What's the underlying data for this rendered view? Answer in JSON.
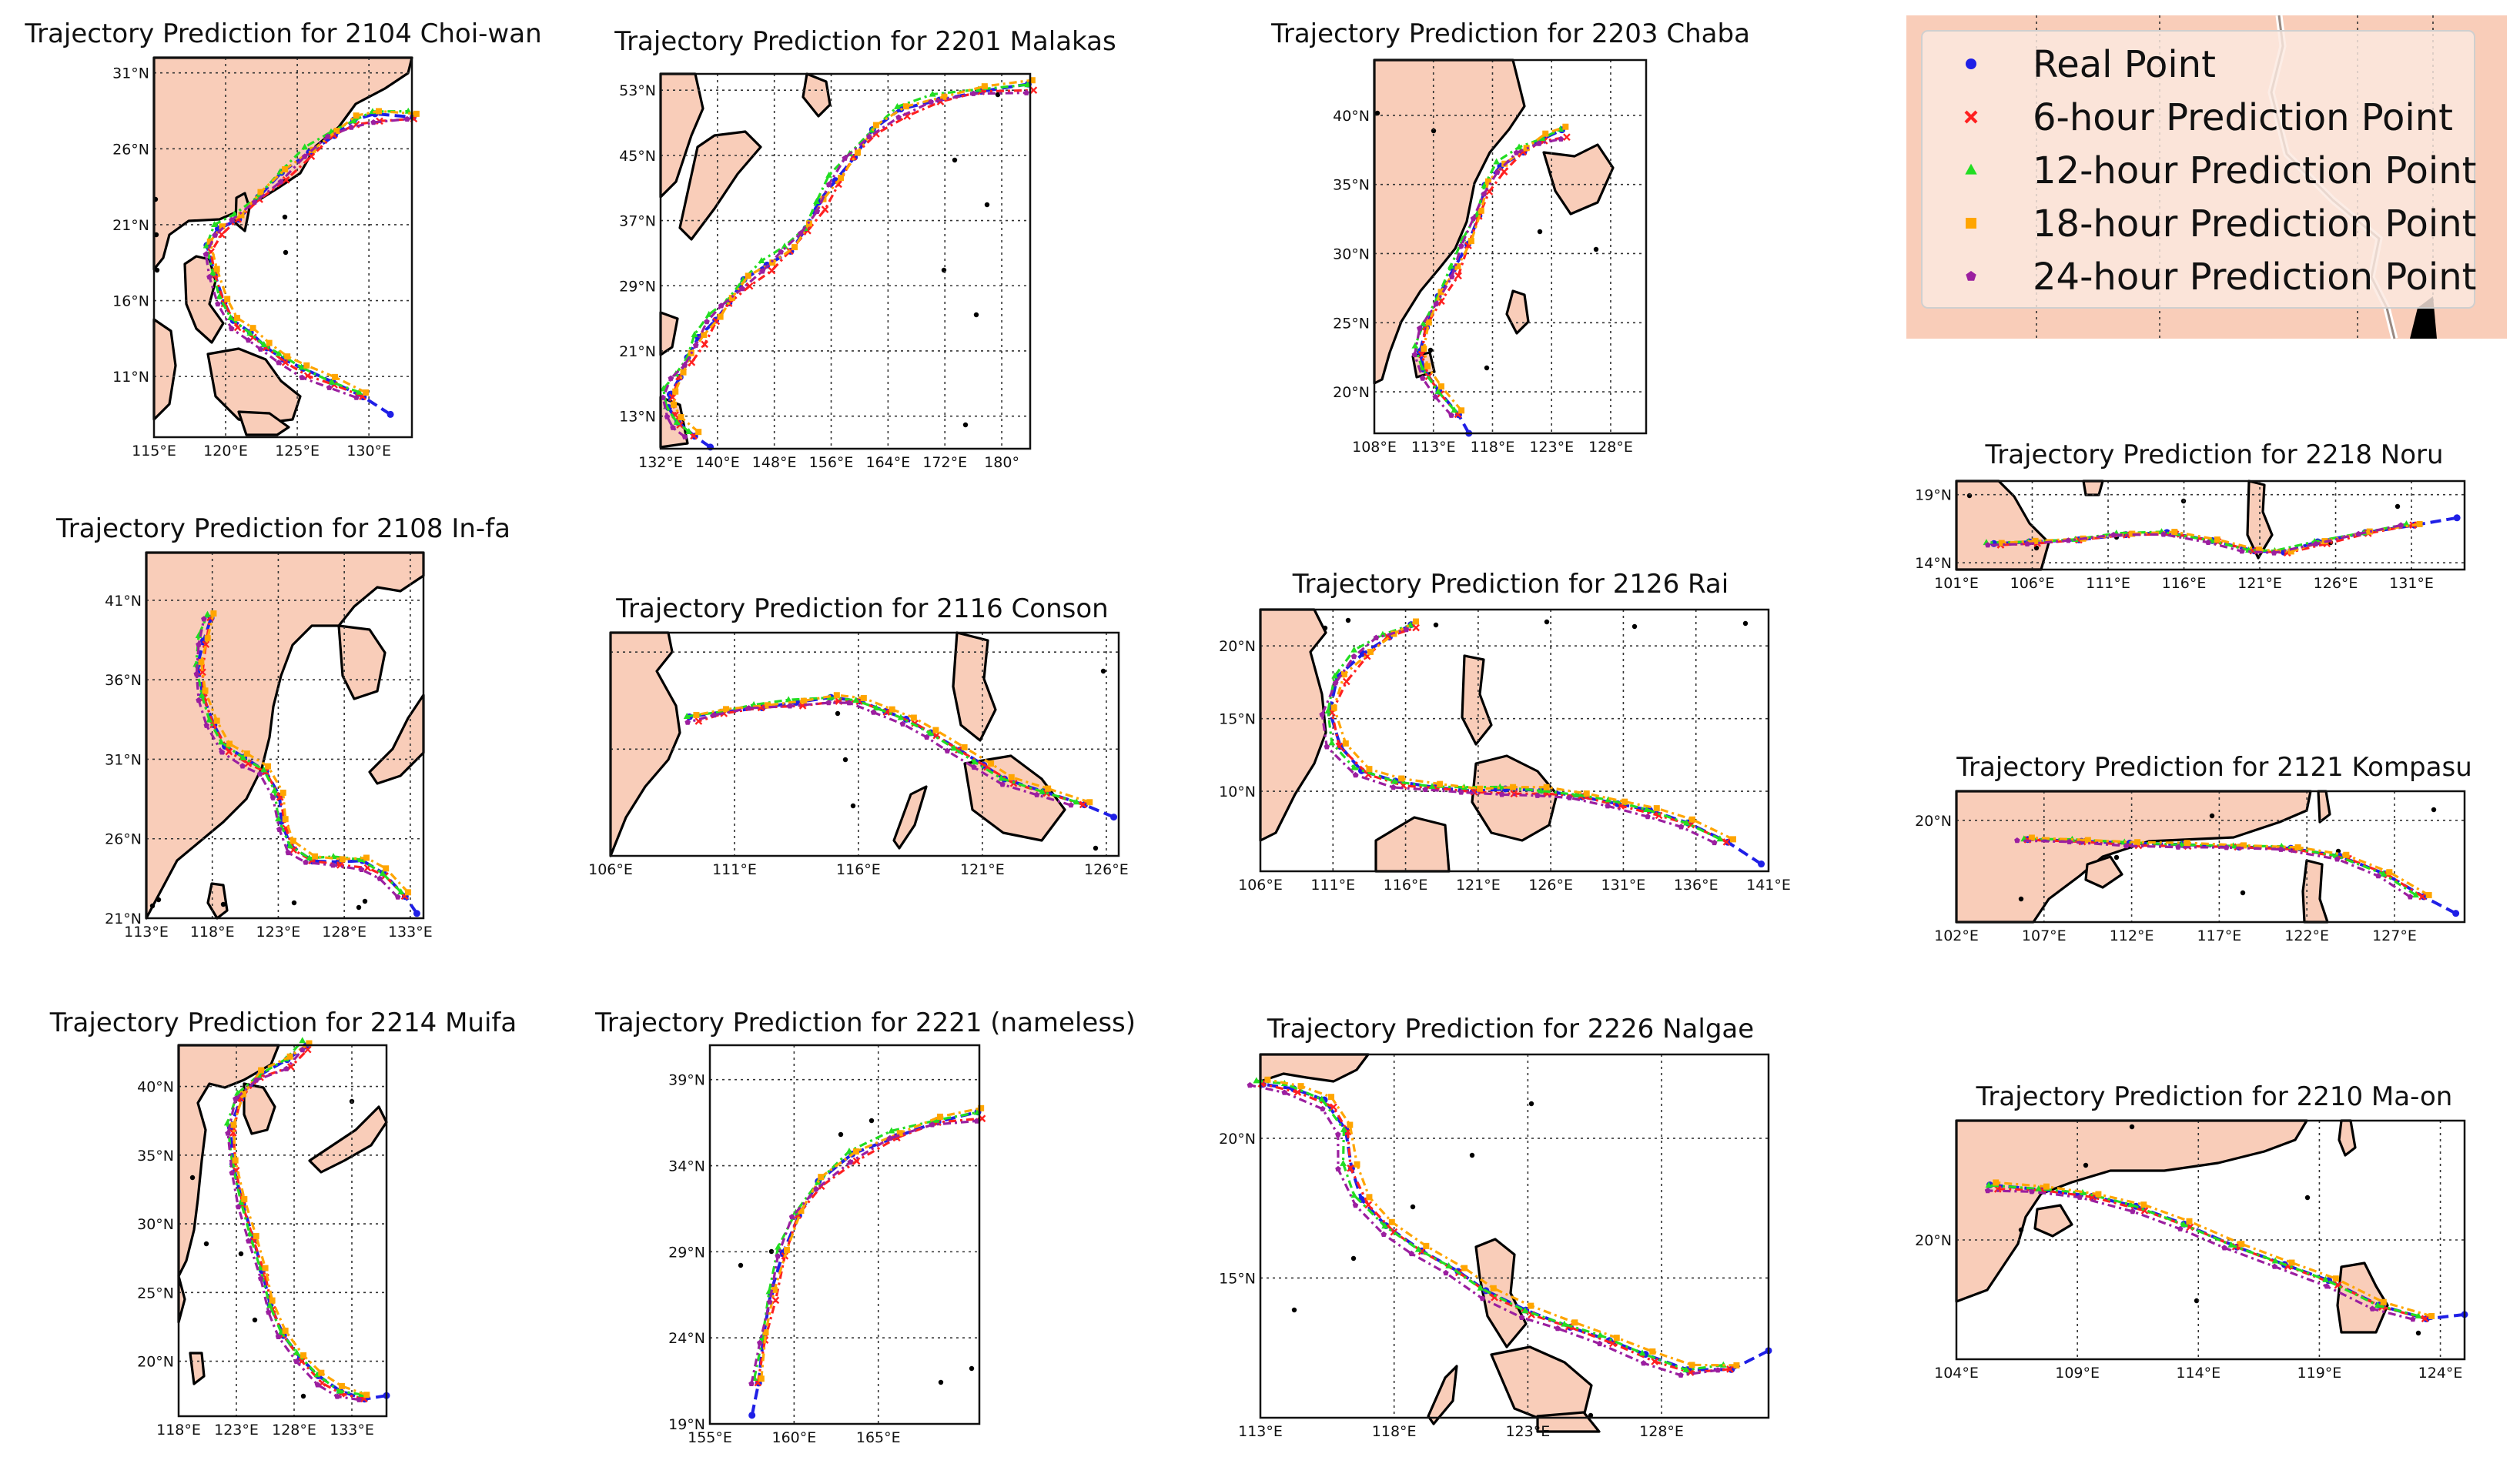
{
  "figure_title": "",
  "colors": {
    "land": "#f9cdb9",
    "legend_bg": "#f9cdb9",
    "series": {
      "real": "#1f1fe6",
      "h6": "#ff2020",
      "h12": "#22dd22",
      "h18": "#ffa500",
      "h24": "#9b1fa0"
    }
  },
  "legend": {
    "items": [
      {
        "key": "real",
        "label": "Real Point",
        "marker": "circle"
      },
      {
        "key": "h6",
        "label": "6-hour Prediction Point",
        "marker": "x"
      },
      {
        "key": "h12",
        "label": "12-hour Prediction Point",
        "marker": "triangle"
      },
      {
        "key": "h18",
        "label": "18-hour Prediction Point",
        "marker": "square"
      },
      {
        "key": "h24",
        "label": "24-hour Prediction Point",
        "marker": "pentagon"
      }
    ]
  },
  "chart_data": [
    {
      "type": "scatter",
      "id": "p2104",
      "title": "Trajectory Prediction for 2104 Choi-wan",
      "xlim": [
        115,
        133
      ],
      "ylim": [
        7,
        32
      ],
      "xticks": [
        115,
        120,
        125,
        130
      ],
      "yticks": [
        11,
        16,
        21,
        26,
        31
      ],
      "xlabels": [
        "115°E",
        "120°E",
        "125°E",
        "130°E"
      ],
      "ylabels": [
        "11°N",
        "16°N",
        "21°N",
        "26°N",
        "31°N"
      ],
      "track": [
        [
          131.5,
          8.5
        ],
        [
          129.5,
          9.8
        ],
        [
          127.5,
          10.6
        ],
        [
          125.5,
          11.4
        ],
        [
          124,
          12.2
        ],
        [
          122.8,
          13
        ],
        [
          121.8,
          13.8
        ],
        [
          120.6,
          14.6
        ],
        [
          119.8,
          16
        ],
        [
          119.2,
          17.8
        ],
        [
          118.8,
          19.5
        ],
        [
          119.5,
          20.7
        ],
        [
          120.8,
          21.5
        ],
        [
          122.3,
          22.8
        ],
        [
          124,
          24.3
        ],
        [
          125.8,
          25.8
        ],
        [
          127.5,
          27
        ],
        [
          129,
          27.8
        ],
        [
          130.5,
          28.2
        ],
        [
          133,
          28.2
        ]
      ]
    },
    {
      "type": "scatter",
      "id": "p2201",
      "title": "Trajectory Prediction for 2201 Malakas",
      "xlim": [
        132,
        184
      ],
      "ylim": [
        9,
        55
      ],
      "xticks": [
        132,
        140,
        148,
        156,
        164,
        172,
        180
      ],
      "yticks": [
        13,
        21,
        29,
        37,
        45,
        53
      ],
      "xlabels": [
        "132°E",
        "140°E",
        "148°E",
        "156°E",
        "164°E",
        "172°E",
        "180°"
      ],
      "ylabels": [
        "13°N",
        "21°N",
        "29°N",
        "37°N",
        "45°N",
        "53°N"
      ],
      "track": [
        [
          139,
          9.2
        ],
        [
          136.5,
          10.8
        ],
        [
          134.5,
          12.2
        ],
        [
          133.4,
          13.8
        ],
        [
          133.2,
          15.8
        ],
        [
          134.5,
          18
        ],
        [
          136,
          20
        ],
        [
          137.5,
          22.5
        ],
        [
          139.5,
          25
        ],
        [
          141.5,
          27
        ],
        [
          144,
          29.5
        ],
        [
          147,
          31.5
        ],
        [
          150,
          33.5
        ],
        [
          152.5,
          36
        ],
        [
          154.5,
          39
        ],
        [
          156.5,
          42
        ],
        [
          159,
          45
        ],
        [
          162,
          48
        ],
        [
          166,
          50.5
        ],
        [
          171,
          52
        ],
        [
          177,
          53
        ],
        [
          184,
          53.5
        ]
      ]
    },
    {
      "type": "scatter",
      "id": "p2203",
      "title": "Trajectory Prediction for 2203 Chaba",
      "xlim": [
        108,
        131
      ],
      "ylim": [
        17,
        44
      ],
      "xticks": [
        108,
        113,
        118,
        123,
        128
      ],
      "yticks": [
        20,
        25,
        30,
        35,
        40
      ],
      "xlabels": [
        "108°E",
        "113°E",
        "118°E",
        "123°E",
        "128°E"
      ],
      "ylabels": [
        "20°N",
        "25°N",
        "30°N",
        "35°N",
        "40°N"
      ],
      "track": [
        [
          116,
          17
        ],
        [
          115,
          18.5
        ],
        [
          113.5,
          20
        ],
        [
          112.3,
          21.5
        ],
        [
          111.8,
          23
        ],
        [
          112.3,
          24.8
        ],
        [
          113.5,
          26.8
        ],
        [
          114.8,
          28.8
        ],
        [
          115.8,
          30.8
        ],
        [
          116.8,
          32.8
        ],
        [
          117.5,
          34.8
        ],
        [
          118.7,
          36.3
        ],
        [
          120.5,
          37.5
        ],
        [
          122.3,
          38.3
        ],
        [
          124,
          38.8
        ]
      ]
    },
    {
      "type": "scatter",
      "id": "p2108",
      "title": "Trajectory Prediction for 2108 In-fa",
      "xlim": [
        113,
        134
      ],
      "ylim": [
        21,
        44
      ],
      "xticks": [
        113,
        118,
        123,
        128,
        133
      ],
      "yticks": [
        21,
        26,
        31,
        36,
        41
      ],
      "xlabels": [
        "113°E",
        "118°E",
        "123°E",
        "128°E",
        "133°E"
      ],
      "ylabels": [
        "21°N",
        "26°N",
        "31°N",
        "36°N",
        "41°N"
      ],
      "track": [
        [
          133.5,
          21.3
        ],
        [
          132.5,
          22.5
        ],
        [
          131,
          23.8
        ],
        [
          129.5,
          24.5
        ],
        [
          127.5,
          24.6
        ],
        [
          125.5,
          24.7
        ],
        [
          124,
          25.5
        ],
        [
          123.3,
          27
        ],
        [
          123,
          28.8
        ],
        [
          122,
          30.3
        ],
        [
          120.5,
          31
        ],
        [
          119,
          31.8
        ],
        [
          118,
          33.3
        ],
        [
          117.3,
          35
        ],
        [
          117,
          36.8
        ],
        [
          117.3,
          38.5
        ],
        [
          117.8,
          40
        ]
      ]
    },
    {
      "type": "scatter",
      "id": "p2116",
      "title": "Trajectory Prediction for 2116 Conson",
      "xlim": [
        106,
        126.5
      ],
      "ylim": [
        6.5,
        18
      ],
      "xticks": [
        106,
        111,
        116,
        121,
        126
      ],
      "yticks": [
        12,
        17
      ],
      "xlabels": [
        "106°E",
        "111°E",
        "116°E",
        "121°E",
        "126°E"
      ],
      "ylabels": [
        "",
        ""
      ],
      "track": [
        [
          126.3,
          8.5
        ],
        [
          125,
          9.2
        ],
        [
          123.5,
          9.8
        ],
        [
          122,
          10.4
        ],
        [
          121,
          11.2
        ],
        [
          120,
          12
        ],
        [
          119,
          12.8
        ],
        [
          118,
          13.5
        ],
        [
          117,
          14
        ],
        [
          116,
          14.5
        ],
        [
          115,
          14.6
        ],
        [
          113.5,
          14.4
        ],
        [
          112,
          14.2
        ],
        [
          110.5,
          13.9
        ],
        [
          109.3,
          13.6
        ]
      ]
    },
    {
      "type": "scatter",
      "id": "p2126",
      "title": "Trajectory Prediction for 2126 Rai",
      "xlim": [
        106,
        141
      ],
      "ylim": [
        4.5,
        22.5
      ],
      "xticks": [
        106,
        111,
        116,
        121,
        126,
        131,
        136,
        141
      ],
      "yticks": [
        10,
        15,
        20
      ],
      "xlabels": [
        "106°E",
        "111°E",
        "116°E",
        "121°E",
        "126°E",
        "131°E",
        "136°E",
        "141°E"
      ],
      "ylabels": [
        "10°N",
        "15°N",
        "20°N"
      ],
      "track": [
        [
          140.5,
          5
        ],
        [
          138,
          6.6
        ],
        [
          135.5,
          7.8
        ],
        [
          133,
          8.6
        ],
        [
          130.5,
          9.2
        ],
        [
          128,
          9.7
        ],
        [
          125.5,
          10
        ],
        [
          123,
          10.1
        ],
        [
          120.5,
          10.1
        ],
        [
          118,
          10.3
        ],
        [
          115.5,
          10.6
        ],
        [
          113,
          11.4
        ],
        [
          111.3,
          13.2
        ],
        [
          110.8,
          15.5
        ],
        [
          111.5,
          17.8
        ],
        [
          113,
          19.5
        ],
        [
          114.7,
          20.7
        ],
        [
          116.5,
          21.4
        ]
      ]
    },
    {
      "type": "scatter",
      "id": "p2218",
      "title": "Trajectory Prediction for 2218 Noru",
      "xlim": [
        101,
        134.5
      ],
      "ylim": [
        13.5,
        20
      ],
      "xticks": [
        101,
        106,
        111,
        116,
        121,
        126,
        131
      ],
      "yticks": [
        14,
        19
      ],
      "xlabels": [
        "101°E",
        "106°E",
        "111°E",
        "116°E",
        "121°E",
        "126°E",
        "131°E"
      ],
      "ylabels": [
        "14°N",
        "19°N"
      ],
      "track": [
        [
          134,
          17.3
        ],
        [
          131,
          16.8
        ],
        [
          128,
          16.2
        ],
        [
          125,
          15.5
        ],
        [
          122.5,
          14.8
        ],
        [
          120.5,
          14.9
        ],
        [
          118,
          15.6
        ],
        [
          115,
          16.2
        ],
        [
          112,
          16.1
        ],
        [
          109,
          15.7
        ],
        [
          106,
          15.5
        ],
        [
          103.5,
          15.4
        ]
      ]
    },
    {
      "type": "scatter",
      "id": "p2121",
      "title": "Trajectory Prediction for 2121 Kompasu",
      "xlim": [
        102,
        131
      ],
      "ylim": [
        13,
        22
      ],
      "xticks": [
        102,
        107,
        112,
        117,
        122,
        127
      ],
      "yticks": [
        20
      ],
      "xlabels": [
        "102°E",
        "107°E",
        "112°E",
        "117°E",
        "122°E",
        "127°E"
      ],
      "ylabels": [
        "20°N"
      ],
      "track": [
        [
          130.5,
          13.6
        ],
        [
          128.5,
          14.8
        ],
        [
          126.5,
          16.3
        ],
        [
          124,
          17.5
        ],
        [
          121,
          18.1
        ],
        [
          118,
          18.2
        ],
        [
          115,
          18.3
        ],
        [
          112,
          18.4
        ],
        [
          109,
          18.6
        ],
        [
          106,
          18.7
        ]
      ]
    },
    {
      "type": "scatter",
      "id": "p2214",
      "title": "Trajectory Prediction for 2214 Muifa",
      "xlim": [
        118,
        136
      ],
      "ylim": [
        16,
        43
      ],
      "xticks": [
        118,
        123,
        128,
        133
      ],
      "yticks": [
        20,
        25,
        30,
        35,
        40
      ],
      "xlabels": [
        "118°E",
        "123°E",
        "128°E",
        "133°E"
      ],
      "ylabels": [
        "20°N",
        "25°N",
        "30°N",
        "35°N",
        "40°N"
      ],
      "track": [
        [
          136,
          17.5
        ],
        [
          134,
          17.4
        ],
        [
          132,
          17.8
        ],
        [
          130.2,
          18.8
        ],
        [
          128.5,
          20.3
        ],
        [
          127,
          22
        ],
        [
          126,
          24
        ],
        [
          125.3,
          26.5
        ],
        [
          124.4,
          29
        ],
        [
          123.5,
          31.5
        ],
        [
          122.8,
          34.2
        ],
        [
          122.5,
          37
        ],
        [
          123.3,
          39.3
        ],
        [
          125,
          40.8
        ],
        [
          127.5,
          41.8
        ],
        [
          129,
          43
        ]
      ]
    },
    {
      "type": "scatter",
      "id": "p2221",
      "title": "Trajectory Prediction for 2221 (nameless)",
      "xlim": [
        155,
        171
      ],
      "ylim": [
        19,
        41
      ],
      "xticks": [
        155,
        160,
        165
      ],
      "yticks": [
        19,
        24,
        29,
        34,
        39
      ],
      "xlabels": [
        "155°E",
        "160°E",
        "165°E"
      ],
      "ylabels": [
        "19°N",
        "24°N",
        "29°N",
        "34°N",
        "39°N"
      ],
      "track": [
        [
          157.5,
          19.5
        ],
        [
          157.8,
          21.5
        ],
        [
          158.2,
          24
        ],
        [
          158.7,
          26.5
        ],
        [
          159.3,
          29
        ],
        [
          160.2,
          31.2
        ],
        [
          161.5,
          33
        ],
        [
          163.5,
          34.6
        ],
        [
          166,
          35.8
        ],
        [
          168.5,
          36.6
        ],
        [
          171,
          37
        ]
      ]
    },
    {
      "type": "scatter",
      "id": "p2226",
      "title": "Trajectory Prediction for 2226 Nalgae",
      "xlim": [
        113,
        132
      ],
      "ylim": [
        10,
        23
      ],
      "xticks": [
        113,
        118,
        123,
        128
      ],
      "yticks": [
        15,
        20
      ],
      "xlabels": [
        "113°E",
        "118°E",
        "123°E",
        "128°E"
      ],
      "ylabels": [
        "15°N",
        "20°N"
      ],
      "track": [
        [
          132,
          12.4
        ],
        [
          130.5,
          11.8
        ],
        [
          129,
          11.7
        ],
        [
          127.5,
          12.2
        ],
        [
          126,
          12.8
        ],
        [
          124.5,
          13.3
        ],
        [
          123,
          13.8
        ],
        [
          121.5,
          14.5
        ],
        [
          120.3,
          15.3
        ],
        [
          119,
          16
        ],
        [
          117.8,
          16.8
        ],
        [
          116.8,
          17.8
        ],
        [
          116.3,
          19
        ],
        [
          116.2,
          20.3
        ],
        [
          115.5,
          21.3
        ],
        [
          114.2,
          21.8
        ],
        [
          113,
          22
        ]
      ]
    },
    {
      "type": "scatter",
      "id": "p2210",
      "title": "Trajectory Prediction for 2210 Ma-on",
      "xlim": [
        104,
        125
      ],
      "ylim": [
        16,
        24
      ],
      "xticks": [
        104,
        109,
        114,
        119,
        124
      ],
      "yticks": [
        20
      ],
      "xlabels": [
        "104°E",
        "109°E",
        "114°E",
        "119°E",
        "124°E"
      ],
      "ylabels": [
        "20°N"
      ],
      "track": [
        [
          125,
          17.5
        ],
        [
          123.3,
          17.4
        ],
        [
          121.5,
          17.8
        ],
        [
          119.5,
          18.6
        ],
        [
          117.5,
          19.2
        ],
        [
          115.5,
          19.8
        ],
        [
          113.5,
          20.5
        ],
        [
          111.5,
          21.1
        ],
        [
          109.5,
          21.5
        ],
        [
          107.5,
          21.7
        ],
        [
          105.5,
          21.8
        ]
      ]
    }
  ]
}
